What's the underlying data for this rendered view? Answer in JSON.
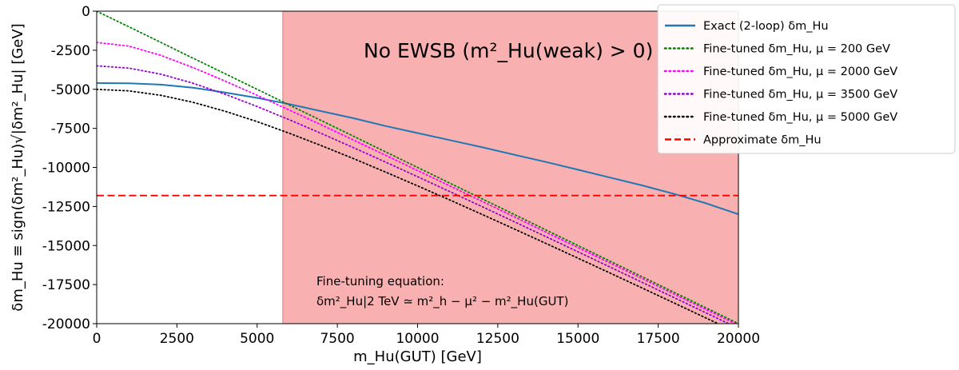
{
  "chart_data": {
    "type": "line",
    "xlabel": "m_Hu(GUT) [GeV]",
    "ylabel": "δm_Hu ≡ sign(δm²_Hu)√|δm²_Hu| [GeV]",
    "xlim": [
      0,
      20000
    ],
    "ylim": [
      -20000,
      0
    ],
    "xticks": [
      0,
      2500,
      5000,
      7500,
      10000,
      12500,
      15000,
      17500,
      20000
    ],
    "yticks": [
      0,
      -2500,
      -5000,
      -7500,
      -10000,
      -12500,
      -15000,
      -17500,
      -20000
    ],
    "grid": false,
    "legend_position": "top-right",
    "shaded_region": {
      "x_start": 5800,
      "x_end": 20000,
      "color": "#f9b0b0",
      "label": "No EWSB (m²_Hu(weak) > 0)"
    },
    "annotation": {
      "line1": "Fine-tuning equation:",
      "line2": "δm²_Hu|2 TeV ≃ m²_h − μ² − m²_Hu(GUT)",
      "x": 7000,
      "y": -17500
    },
    "series": [
      {
        "name": "Exact (2-loop) δm_Hu",
        "style": "solid",
        "color": "#1f77b4",
        "x": [
          0,
          1000,
          2000,
          3000,
          4000,
          5000,
          6000,
          7000,
          8000,
          9000,
          10000,
          11000,
          12000,
          13000,
          14000,
          15000,
          16000,
          17000,
          18000,
          19000,
          20000
        ],
        "y": [
          -4600,
          -4620,
          -4700,
          -4900,
          -5200,
          -5550,
          -5950,
          -6400,
          -6850,
          -7350,
          -7800,
          -8250,
          -8700,
          -9180,
          -9650,
          -10150,
          -10650,
          -11150,
          -11700,
          -12300,
          -13000
        ]
      },
      {
        "name": "Fine-tuned δm_Hu, μ = 200 GeV",
        "mu": 200,
        "style": "dotted",
        "color": "#008000",
        "x": [
          0,
          1000,
          2000,
          3000,
          4000,
          5000,
          6000,
          7000,
          8000,
          9000,
          10000,
          11000,
          12000,
          13000,
          14000,
          15000,
          16000,
          17000,
          18000,
          19000,
          20000
        ],
        "y": [
          0,
          -1000,
          -2000,
          -3000,
          -4000,
          -5000,
          -6000,
          -7000,
          -8000,
          -9000,
          -10000,
          -11000,
          -12000,
          -13000,
          -14000,
          -15000,
          -16000,
          -17000,
          -18000,
          -19000,
          -20000
        ]
      },
      {
        "name": "Fine-tuned δm_Hu, μ = 2000 GeV",
        "mu": 2000,
        "style": "dotted",
        "color": "#ff00ff",
        "x": [
          0,
          1000,
          2000,
          3000,
          4000,
          5000,
          6000,
          7000,
          8000,
          9000,
          10000,
          11000,
          12000,
          13000,
          14000,
          15000,
          16000,
          17000,
          18000,
          19000,
          20000
        ],
        "y": [
          -2000,
          -2236,
          -2828,
          -3606,
          -4472,
          -5385,
          -6325,
          -7280,
          -8246,
          -9220,
          -10198,
          -11180,
          -12166,
          -13153,
          -14142,
          -15133,
          -16125,
          -17117,
          -18111,
          -19105,
          -20100
        ]
      },
      {
        "name": "Fine-tuned δm_Hu, μ = 3500 GeV",
        "mu": 3500,
        "style": "dotted",
        "color": "#9400d3",
        "x": [
          0,
          1000,
          2000,
          3000,
          4000,
          5000,
          6000,
          7000,
          8000,
          9000,
          10000,
          11000,
          12000,
          13000,
          14000,
          15000,
          16000,
          17000,
          18000,
          19000,
          20000
        ],
        "y": [
          -3500,
          -3640,
          -4031,
          -4610,
          -5315,
          -6103,
          -6946,
          -7826,
          -8732,
          -9657,
          -10595,
          -11543,
          -12500,
          -13463,
          -14431,
          -15403,
          -16378,
          -17357,
          -18338,
          -19320,
          -20304
        ]
      },
      {
        "name": "Fine-tuned δm_Hu, μ = 5000 GeV",
        "mu": 5000,
        "style": "dotted",
        "color": "#000000",
        "x": [
          0,
          1000,
          2000,
          3000,
          4000,
          5000,
          6000,
          7000,
          8000,
          9000,
          10000,
          11000,
          12000,
          13000,
          14000,
          15000,
          16000,
          17000,
          18000,
          19000,
          20000
        ],
        "y": [
          -5000,
          -5099,
          -5385,
          -5831,
          -6403,
          -7071,
          -7810,
          -8602,
          -9434,
          -10296,
          -11180,
          -12083,
          -13000,
          -13928,
          -14866,
          -15811,
          -16763,
          -17720,
          -18682,
          -19647,
          -20616
        ]
      },
      {
        "name": "Approximate δm_Hu",
        "style": "dashed",
        "color": "#ff0000",
        "x": [
          0,
          20000
        ],
        "y": [
          -11800,
          -11800
        ]
      }
    ]
  }
}
